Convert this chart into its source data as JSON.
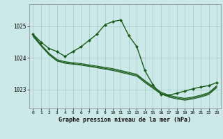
{
  "title": "Graphe pression niveau de la mer (hPa)",
  "bg_color": "#cce8e8",
  "grid_color": "#aacccc",
  "line_color": "#1a5c1a",
  "xlim": [
    -0.5,
    23.5
  ],
  "ylim": [
    1022.4,
    1025.7
  ],
  "yticks": [
    1023,
    1024,
    1025
  ],
  "ytick_labels": [
    "1023",
    "1024",
    "1025"
  ],
  "xtick_labels": [
    "0",
    "1",
    "2",
    "3",
    "4",
    "5",
    "6",
    "7",
    "8",
    "9",
    "10",
    "11",
    "12",
    "13",
    "14",
    "15",
    "16",
    "17",
    "18",
    "19",
    "20",
    "21",
    "22",
    "23"
  ],
  "series1_x": [
    0,
    1,
    2,
    3,
    4,
    5,
    6,
    7,
    8,
    9,
    10,
    11,
    12,
    13,
    14,
    15,
    16,
    17,
    18,
    19,
    20,
    21,
    22,
    23
  ],
  "series1_y": [
    1024.75,
    1024.5,
    1024.3,
    1024.2,
    1024.05,
    1024.2,
    1024.35,
    1024.55,
    1024.75,
    1025.05,
    1025.15,
    1025.2,
    1024.7,
    1024.35,
    1023.6,
    1023.15,
    1022.85,
    1022.82,
    1022.88,
    1022.95,
    1023.02,
    1023.08,
    1023.12,
    1023.22
  ],
  "series2_x": [
    0,
    1,
    2,
    3,
    4,
    5,
    6,
    7,
    8,
    9,
    10,
    11,
    12,
    13,
    14,
    15,
    16,
    17,
    18,
    19,
    20,
    21,
    22,
    23
  ],
  "series2_y": [
    1024.75,
    1024.42,
    1024.15,
    1023.95,
    1023.88,
    1023.85,
    1023.82,
    1023.78,
    1023.74,
    1023.7,
    1023.66,
    1023.6,
    1023.54,
    1023.48,
    1023.28,
    1023.1,
    1022.92,
    1022.82,
    1022.76,
    1022.72,
    1022.76,
    1022.82,
    1022.9,
    1023.12
  ],
  "series3_x": [
    0,
    1,
    2,
    3,
    4,
    5,
    6,
    7,
    8,
    9,
    10,
    11,
    12,
    13,
    14,
    15,
    16,
    17,
    18,
    19,
    20,
    21,
    22,
    23
  ],
  "series3_y": [
    1024.68,
    1024.38,
    1024.1,
    1023.9,
    1023.83,
    1023.8,
    1023.77,
    1023.73,
    1023.69,
    1023.64,
    1023.6,
    1023.54,
    1023.48,
    1023.42,
    1023.22,
    1023.04,
    1022.86,
    1022.76,
    1022.7,
    1022.66,
    1022.7,
    1022.76,
    1022.84,
    1023.06
  ],
  "series4_x": [
    0,
    1,
    2,
    3,
    4,
    5,
    6,
    7,
    8,
    9,
    10,
    11,
    12,
    13,
    14,
    15,
    16,
    17,
    18,
    19,
    20,
    21,
    22,
    23
  ],
  "series4_y": [
    1024.72,
    1024.4,
    1024.12,
    1023.92,
    1023.85,
    1023.82,
    1023.79,
    1023.75,
    1023.71,
    1023.67,
    1023.63,
    1023.57,
    1023.51,
    1023.45,
    1023.25,
    1023.07,
    1022.89,
    1022.79,
    1022.73,
    1022.69,
    1022.73,
    1022.79,
    1022.87,
    1023.09
  ]
}
